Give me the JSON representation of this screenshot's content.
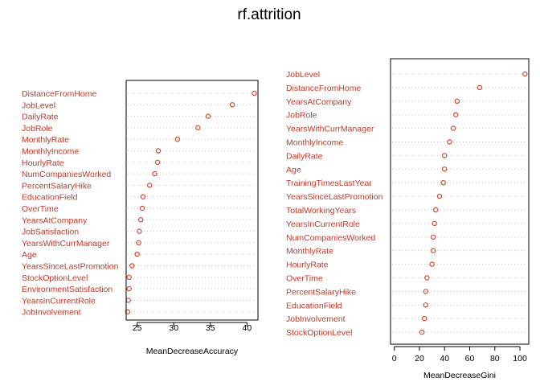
{
  "title": "rf.attrition",
  "colors": {
    "label": "#c0392b",
    "point": "#d9442a",
    "axis": "#000000",
    "guide": "#bdbdbd"
  },
  "chart_data": [
    {
      "type": "scatter",
      "subtype": "dotchart",
      "xlabel": "MeanDecreaseAccuracy",
      "xlim": [
        23.5,
        41.5
      ],
      "xticks": [
        25,
        30,
        35,
        40
      ],
      "grid": "dotted-row-guides",
      "categories": [
        "DistanceFromHome",
        "JobLevel",
        "DailyRate",
        "JobRole",
        "MonthlyRate",
        "MonthlyIncome",
        "HourlyRate",
        "NumCompaniesWorked",
        "PercentSalaryHike",
        "EducationField",
        "OverTime",
        "YearsAtCompany",
        "JobSatisfaction",
        "YearsWithCurrManager",
        "Age",
        "YearsSinceLastPromotion",
        "StockOptionLevel",
        "EnvironmentSatisfaction",
        "YearsInCurrentRole",
        "JobInvolvement"
      ],
      "values": [
        41.0,
        38.0,
        34.7,
        33.3,
        30.5,
        27.9,
        27.8,
        27.4,
        26.7,
        25.8,
        25.7,
        25.5,
        25.3,
        25.2,
        25.0,
        24.3,
        23.9,
        23.9,
        23.8,
        23.7
      ]
    },
    {
      "type": "scatter",
      "subtype": "dotchart",
      "xlabel": "MeanDecreaseGini",
      "xlim": [
        -3,
        107
      ],
      "xticks": [
        0,
        20,
        40,
        60,
        80,
        100
      ],
      "grid": "dotted-row-guides",
      "categories": [
        "JobLevel",
        "DistanceFromHome",
        "YearsAtCompany",
        "JobRole",
        "YearsWithCurrManager",
        "MonthlyIncome",
        "DailyRate",
        "Age",
        "TrainingTimesLastYear",
        "YearsSinceLastPromotion",
        "TotalWorkingYears",
        "YearsInCurrentRole",
        "NumCompaniesWorked",
        "MonthlyRate",
        "HourlyRate",
        "OverTime",
        "PercentSalaryHike",
        "EducationField",
        "JobInvolvement",
        "StockOptionLevel"
      ],
      "values": [
        104,
        68,
        50,
        49,
        47,
        44,
        40,
        40,
        39,
        36,
        33,
        32,
        31,
        31,
        30,
        26,
        25,
        25,
        24,
        22
      ]
    }
  ]
}
